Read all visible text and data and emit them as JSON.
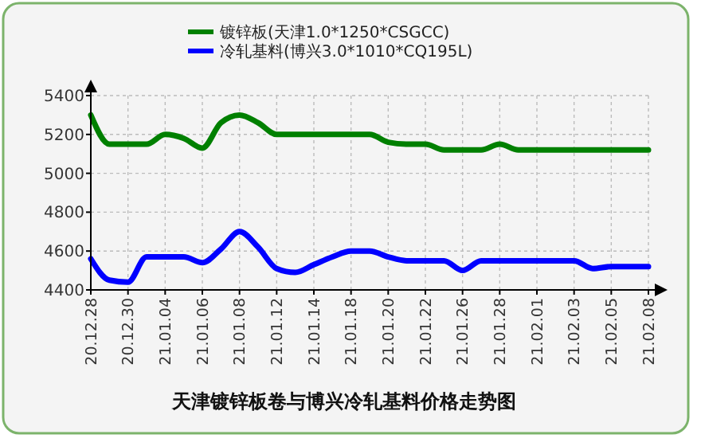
{
  "chart_data": {
    "type": "line",
    "title": "天津镀锌板卷与博兴冷轧基料价格走势图",
    "categories": [
      "20.12.28",
      null,
      "20.12.30",
      null,
      "21.01.04",
      null,
      "21.01.06",
      null,
      "21.01.08",
      null,
      "21.01.12",
      null,
      "21.01.14",
      null,
      "21.01.18",
      null,
      "21.01.20",
      null,
      "21.01.22",
      null,
      "21.01.26",
      null,
      "21.01.28",
      null,
      "21.02.01",
      null,
      "21.02.03",
      null,
      "21.02.05",
      null,
      "21.02.08"
    ],
    "series": [
      {
        "name": "镀锌板(天津1.0*1250*CSGCC)",
        "color": "#008000",
        "values": [
          5300,
          5150,
          5150,
          5150,
          5200,
          5180,
          5130,
          5260,
          5300,
          5260,
          5200,
          5200,
          5200,
          5200,
          5200,
          5200,
          5160,
          5150,
          5150,
          5120,
          5120,
          5120,
          5150,
          5120,
          5120,
          5120,
          5120,
          5120,
          5120,
          5120,
          5120
        ]
      },
      {
        "name": "冷轧基料(博兴3.0*1010*CQ195L)",
        "color": "#0000ff",
        "values": [
          4560,
          4450,
          4440,
          4570,
          4570,
          4570,
          4540,
          4610,
          4700,
          4620,
          4510,
          4490,
          4530,
          4570,
          4600,
          4600,
          4570,
          4550,
          4550,
          4550,
          4500,
          4550,
          4550,
          4550,
          4550,
          4550,
          4550,
          4510,
          4520,
          4520,
          4520
        ]
      }
    ],
    "ylim": [
      4400,
      5400
    ],
    "yticks": [
      4400,
      4600,
      4800,
      5000,
      5200,
      5400
    ],
    "grid": true,
    "legend": "top",
    "line_style": "solid"
  }
}
